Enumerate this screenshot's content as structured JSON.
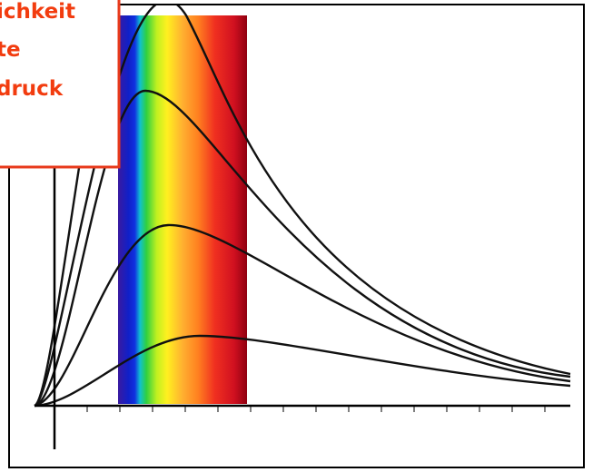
{
  "label": {
    "lines": [
      "ichkeit",
      "te",
      "druck"
    ]
  }
}
